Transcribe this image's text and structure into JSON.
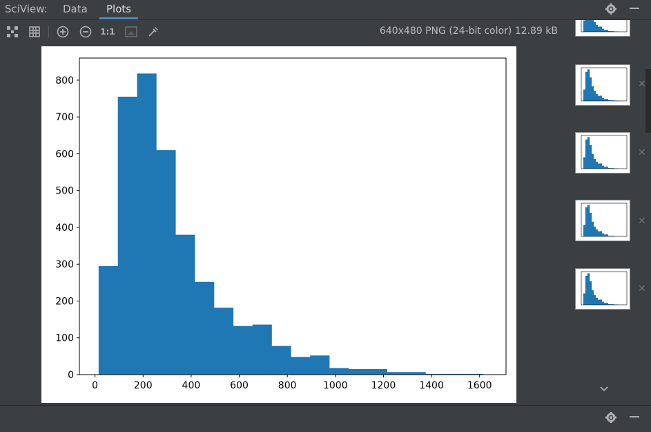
{
  "header": {
    "title": "SciView:",
    "tabs": [
      {
        "label": "Data",
        "active": false
      },
      {
        "label": "Plots",
        "active": true
      }
    ]
  },
  "toolbar": {
    "image_info": "640x480 PNG (24-bit color) 12.89 kB",
    "one_to_one_label": "1:1",
    "icons": [
      "fit-screen-icon",
      "grid-icon",
      "zoom-in-icon",
      "zoom-out-icon",
      "actual-size-icon",
      "background-icon",
      "color-picker-icon"
    ]
  },
  "colors": {
    "ide_background": "#3c3f41",
    "bar_color": "#1f77b4",
    "accent": "#4a88c7"
  },
  "thumbnails_count": 5,
  "chart_data": {
    "type": "bar",
    "title": "",
    "xlabel": "",
    "ylabel": "",
    "xlim": [
      -65,
      1710
    ],
    "ylim": [
      0,
      860
    ],
    "xticks": [
      0,
      200,
      400,
      600,
      800,
      1000,
      1200,
      1400,
      1600
    ],
    "yticks": [
      0,
      100,
      200,
      300,
      400,
      500,
      600,
      700,
      800
    ],
    "bin_edges": [
      15,
      95,
      175,
      255,
      335,
      415,
      495,
      575,
      655,
      735,
      815,
      895,
      975,
      1055,
      1135,
      1215,
      1295,
      1375,
      1455,
      1535,
      1615
    ],
    "counts": [
      295,
      755,
      818,
      610,
      380,
      252,
      182,
      132,
      136,
      78,
      48,
      52,
      18,
      15,
      15,
      7,
      7,
      2,
      2,
      2
    ],
    "grid": false,
    "legend": "none"
  }
}
